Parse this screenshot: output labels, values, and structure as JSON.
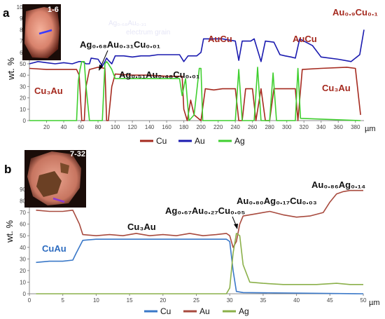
{
  "chart_data": [
    {
      "panel": "a",
      "type": "line",
      "ylabel": "wt. %",
      "unit": "µm",
      "xlim": [
        0,
        390
      ],
      "ylim": [
        0,
        100
      ],
      "xticks": [
        20,
        40,
        60,
        80,
        100,
        120,
        140,
        160,
        180,
        200,
        220,
        240,
        260,
        280,
        300,
        320,
        340,
        360,
        380
      ],
      "yticks": [
        0,
        10,
        20,
        30,
        40,
        50,
        60,
        70,
        80,
        90,
        100
      ],
      "grid": false,
      "legend_position": "bottom",
      "inset_label": "1-6",
      "watermarks": [
        "Ag₀.₆₈Au₀.₃₁",
        "electrum grain"
      ],
      "series": [
        {
          "name": "Cu",
          "color": "#a52a1f",
          "points": [
            [
              0,
              46
            ],
            [
              20,
              45
            ],
            [
              40,
              45
            ],
            [
              55,
              45
            ],
            [
              58,
              40
            ],
            [
              61,
              0
            ],
            [
              64,
              0
            ],
            [
              66,
              30
            ],
            [
              70,
              45
            ],
            [
              80,
              47
            ],
            [
              88,
              46
            ],
            [
              90,
              0
            ],
            [
              92,
              0
            ],
            [
              96,
              30
            ],
            [
              100,
              41
            ],
            [
              120,
              40
            ],
            [
              140,
              40
            ],
            [
              160,
              39
            ],
            [
              178,
              39
            ],
            [
              180,
              10
            ],
            [
              184,
              0
            ],
            [
              188,
              18
            ],
            [
              192,
              5
            ],
            [
              200,
              0
            ],
            [
              205,
              28
            ],
            [
              215,
              27
            ],
            [
              225,
              28
            ],
            [
              240,
              28
            ],
            [
              244,
              0
            ],
            [
              248,
              0
            ],
            [
              252,
              28
            ],
            [
              260,
              28
            ],
            [
              264,
              0
            ],
            [
              270,
              28
            ],
            [
              275,
              0
            ],
            [
              280,
              0
            ],
            [
              285,
              28
            ],
            [
              300,
              28
            ],
            [
              310,
              28
            ],
            [
              313,
              0
            ],
            [
              318,
              45
            ],
            [
              340,
              46
            ],
            [
              370,
              47
            ],
            [
              380,
              46
            ],
            [
              386,
              5
            ]
          ]
        },
        {
          "name": "Au",
          "color": "#1a1aaf",
          "points": [
            [
              0,
              50
            ],
            [
              10,
              52
            ],
            [
              20,
              51
            ],
            [
              30,
              50
            ],
            [
              40,
              51
            ],
            [
              50,
              50
            ],
            [
              58,
              52
            ],
            [
              62,
              52
            ],
            [
              66,
              50
            ],
            [
              70,
              50
            ],
            [
              72,
              55
            ],
            [
              80,
              54
            ],
            [
              85,
              48
            ],
            [
              88,
              52
            ],
            [
              90,
              55
            ],
            [
              92,
              53
            ],
            [
              96,
              50
            ],
            [
              100,
              57
            ],
            [
              110,
              57
            ],
            [
              120,
              56
            ],
            [
              130,
              57
            ],
            [
              140,
              57
            ],
            [
              150,
              58
            ],
            [
              160,
              58
            ],
            [
              170,
              58
            ],
            [
              175,
              58
            ],
            [
              180,
              52
            ],
            [
              185,
              57
            ],
            [
              195,
              57
            ],
            [
              200,
              60
            ],
            [
              203,
              72
            ],
            [
              210,
              72
            ],
            [
              225,
              72
            ],
            [
              240,
              70
            ],
            [
              244,
              53
            ],
            [
              248,
              70
            ],
            [
              258,
              70
            ],
            [
              262,
              72
            ],
            [
              270,
              52
            ],
            [
              275,
              70
            ],
            [
              285,
              69
            ],
            [
              292,
              58
            ],
            [
              298,
              57
            ],
            [
              305,
              56
            ],
            [
              310,
              55
            ],
            [
              315,
              72
            ],
            [
              330,
              66
            ],
            [
              340,
              56
            ],
            [
              360,
              54
            ],
            [
              375,
              52
            ],
            [
              385,
              58
            ],
            [
              390,
              80
            ]
          ]
        },
        {
          "name": "Ag",
          "color": "#3fcf2f",
          "points": [
            [
              0,
              0
            ],
            [
              55,
              0
            ],
            [
              57,
              35
            ],
            [
              59,
              45
            ],
            [
              61,
              52
            ],
            [
              64,
              52
            ],
            [
              66,
              30
            ],
            [
              70,
              0
            ],
            [
              85,
              0
            ],
            [
              88,
              50
            ],
            [
              90,
              52
            ],
            [
              92,
              50
            ],
            [
              96,
              45
            ],
            [
              100,
              37
            ],
            [
              120,
              37
            ],
            [
              140,
              37
            ],
            [
              160,
              37
            ],
            [
              175,
              37
            ],
            [
              178,
              22
            ],
            [
              182,
              37
            ],
            [
              186,
              0
            ],
            [
              192,
              5
            ],
            [
              198,
              46
            ],
            [
              200,
              46
            ],
            [
              202,
              0
            ],
            [
              240,
              0
            ],
            [
              244,
              45
            ],
            [
              248,
              0
            ],
            [
              262,
              0
            ],
            [
              266,
              47
            ],
            [
              270,
              0
            ],
            [
              280,
              0
            ],
            [
              284,
              42
            ],
            [
              288,
              0
            ],
            [
              310,
              0
            ],
            [
              313,
              46
            ],
            [
              316,
              2
            ],
            [
              386,
              0
            ]
          ]
        }
      ],
      "annotations": [
        {
          "text": "Ag₀.₆₈Au₀.₃₁Cu₀.₀₁",
          "color": "#111111"
        },
        {
          "text": "Ag₀.₅₁Au₀.₄₈Cu₀.₀₁",
          "color": "#111111"
        },
        {
          "text": "Cu₃Au",
          "color": "#a52a1f"
        },
        {
          "text": "AuCu",
          "color": "#a52a1f"
        },
        {
          "text": "AuCu",
          "color": "#a52a1f"
        },
        {
          "text": "Au₀.₉Cu₀.₁",
          "color": "#a52a1f"
        },
        {
          "text": "Cu₃Au",
          "color": "#a52a1f"
        }
      ]
    },
    {
      "panel": "b",
      "type": "line",
      "ylabel": "wt. %",
      "unit": "µm",
      "xlim": [
        0,
        50
      ],
      "ylim": [
        0,
        90
      ],
      "xticks": [
        0,
        5,
        10,
        15,
        20,
        25,
        30,
        35,
        40,
        45,
        50
      ],
      "yticks": [
        0,
        10,
        20,
        30,
        40,
        50,
        60,
        70,
        80,
        90
      ],
      "grid": false,
      "legend_position": "bottom",
      "inset_label": "7-32",
      "series": [
        {
          "name": "Cu",
          "color": "#3a78c8",
          "points": [
            [
              1,
              27
            ],
            [
              3,
              28
            ],
            [
              5,
              28
            ],
            [
              6.5,
              29
            ],
            [
              7,
              35
            ],
            [
              8,
              46
            ],
            [
              10,
              47
            ],
            [
              15,
              47
            ],
            [
              20,
              47
            ],
            [
              25,
              47
            ],
            [
              29.5,
              47
            ],
            [
              30,
              45
            ],
            [
              30.5,
              20
            ],
            [
              31,
              2
            ],
            [
              32,
              1
            ],
            [
              50,
              0
            ]
          ]
        },
        {
          "name": "Au",
          "color": "#a84a3e",
          "points": [
            [
              1,
              72
            ],
            [
              3,
              71
            ],
            [
              5,
              71
            ],
            [
              6.5,
              72
            ],
            [
              7.5,
              60
            ],
            [
              8,
              51
            ],
            [
              10,
              50
            ],
            [
              12,
              51
            ],
            [
              14,
              50
            ],
            [
              16,
              52
            ],
            [
              18,
              50
            ],
            [
              20,
              51
            ],
            [
              22,
              50
            ],
            [
              24,
              52
            ],
            [
              26,
              50
            ],
            [
              28,
              51
            ],
            [
              29.5,
              52
            ],
            [
              30,
              50
            ],
            [
              30.5,
              40
            ],
            [
              31,
              45
            ],
            [
              31.5,
              60
            ],
            [
              32,
              67
            ],
            [
              34,
              69
            ],
            [
              36,
              71
            ],
            [
              38,
              68
            ],
            [
              40,
              66
            ],
            [
              42,
              67
            ],
            [
              44,
              70
            ],
            [
              45,
              79
            ],
            [
              46,
              86
            ],
            [
              47,
              88
            ],
            [
              48,
              89
            ],
            [
              50,
              89
            ]
          ]
        },
        {
          "name": "Ag",
          "color": "#8bb04a",
          "points": [
            [
              1,
              0
            ],
            [
              10,
              0
            ],
            [
              20,
              0
            ],
            [
              29.5,
              0
            ],
            [
              30,
              5
            ],
            [
              30.5,
              35
            ],
            [
              31,
              52
            ],
            [
              31.5,
              50
            ],
            [
              32,
              25
            ],
            [
              33,
              10
            ],
            [
              35,
              9
            ],
            [
              38,
              8
            ],
            [
              40,
              8
            ],
            [
              43,
              8
            ],
            [
              46,
              9
            ],
            [
              48,
              8
            ],
            [
              50,
              8
            ]
          ]
        }
      ],
      "annotations": [
        {
          "text": "CuAu",
          "color": "#2d6cc0"
        },
        {
          "text": "Cu₃Au",
          "color": "#111111"
        },
        {
          "text": "Ag₀.₆₇Au₀.₂₇Cu₀.₀₅",
          "color": "#111111"
        },
        {
          "text": "Au₀.₈₀Ag₀.₁₇Cu₀.₀₃",
          "color": "#111111"
        },
        {
          "text": "Au₀.₈₆Ag₀.₁₄",
          "color": "#111111"
        }
      ]
    }
  ]
}
